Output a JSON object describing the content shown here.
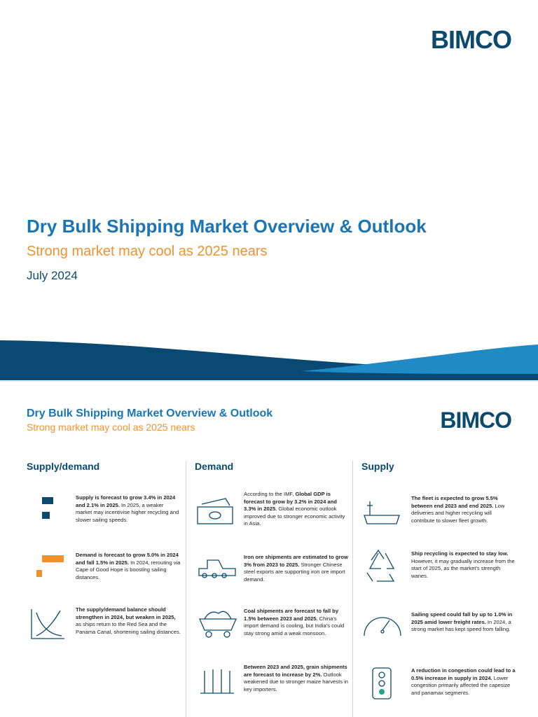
{
  "cover": {
    "logo": "BIMCO",
    "title": "Dry Bulk Shipping Market Overview & Outlook",
    "subtitle": "Strong market may cool as 2025 nears",
    "date": "July 2024"
  },
  "overview": {
    "logo": "BIMCO",
    "title": "Dry Bulk Shipping Market Overview & Outlook",
    "subtitle": "Strong market may cool as 2025 nears",
    "columns": [
      {
        "heading": "Supply/demand",
        "items": [
          [
            {
              "text": "Supply is forecast to grow 3.4% in 2024 and 2.1% in 2025.",
              "bold": true
            },
            {
              "text": " In 2025, a weaker market may incentivise higher recycling and slower sailing speeds.",
              "bold": false
            }
          ],
          [
            {
              "text": "Demand is forecast to grow 5.0% in 2024 and fall 1.5% in 2025.",
              "bold": true
            },
            {
              "text": " In 2024, rerouting via Cape of Good Hope is boosting sailing distances.",
              "bold": false
            }
          ],
          [
            {
              "text": "The supply/demand balance should strengthen in 2024, but weaken in 2025,",
              "bold": true
            },
            {
              "text": " as ships return to the Red Sea and the Panama Canal, shortening sailing distances.",
              "bold": false
            }
          ]
        ]
      },
      {
        "heading": "Demand",
        "items": [
          [
            {
              "text": "According to the IMF, ",
              "bold": false
            },
            {
              "text": "Global GDP is forecast to grow by 3.2% in 2024 and 3.3% in 2025.",
              "bold": true
            },
            {
              "text": " Global economic outlook improved due to stronger economic activity in Asia.",
              "bold": false
            }
          ],
          [
            {
              "text": "Iron ore shipments are estimated to grow 3% from 2023 to 2025.",
              "bold": true
            },
            {
              "text": " Stronger Chinese steel exports are supporting iron ore import demand.",
              "bold": false
            }
          ],
          [
            {
              "text": "Coal shipments are forecast to fall by 1.5% between 2023 and 2025.",
              "bold": true
            },
            {
              "text": " China's import demand is cooling, but India's could stay strong amid a weak monsoon.",
              "bold": false
            }
          ],
          [
            {
              "text": "Between 2023 and 2025, grain shipments are forecast to increase by 2%.",
              "bold": true
            },
            {
              "text": " Outlook weakened due to stronger maize harvests in key importers.",
              "bold": false
            }
          ]
        ]
      },
      {
        "heading": "Supply",
        "items": [
          [
            {
              "text": "The fleet is expected to grow 5.5% between end 2023 and end 2025.",
              "bold": true
            },
            {
              "text": " Low deliveries and higher recycling will contribute to slower fleet growth.",
              "bold": false
            }
          ],
          [
            {
              "text": "Ship recycling is expected to stay low.",
              "bold": true
            },
            {
              "text": " However, it may gradually increase from the start of 2025, as the market's strength wanes.",
              "bold": false
            }
          ],
          [
            {
              "text": "Sailing speed could fall by up to 1.0% in 2025 amid lower freight rates.",
              "bold": true
            },
            {
              "text": " In 2024, a strong market has kept speed from falling.",
              "bold": false
            }
          ],
          [
            {
              "text": "A reduction in congestion could lead to a 0.5% increase in supply in 2024.",
              "bold": true
            },
            {
              "text": " Lower congestion primarily affected the capesize and panamax segments.",
              "bold": false
            }
          ]
        ]
      }
    ]
  }
}
